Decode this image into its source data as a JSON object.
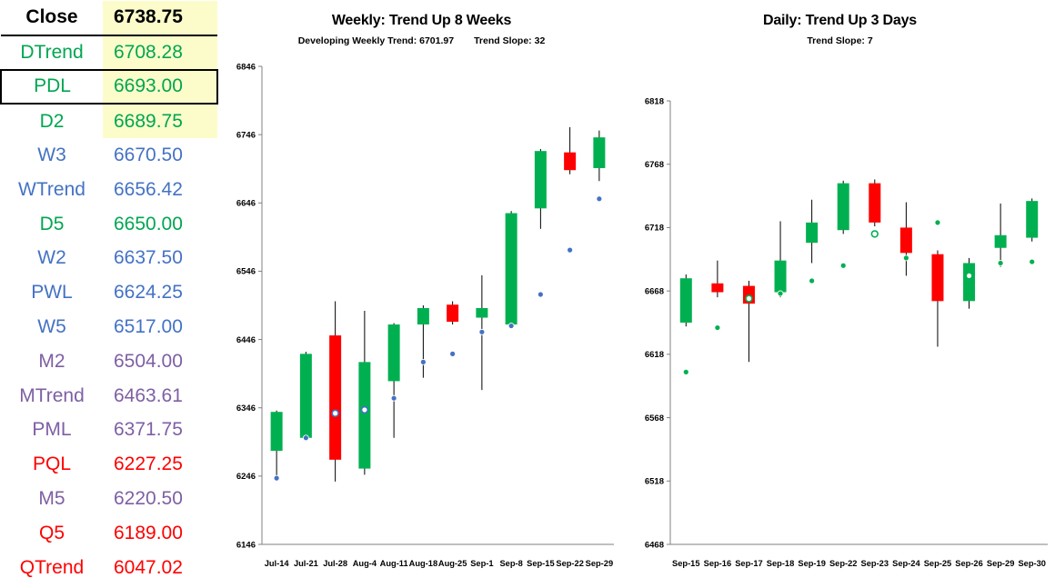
{
  "colors": {
    "black": "#000000",
    "green": "#00A651",
    "blue": "#4472C4",
    "purple": "#7E5FA4",
    "red": "#FF0000",
    "highlight": "#FCFCCB",
    "candle_up": "#00B050",
    "candle_down": "#FF0000",
    "axis": "#808080"
  },
  "levels": {
    "rows": [
      {
        "label": "Close",
        "value": "6738.75",
        "color": "black",
        "bold": true,
        "highlight": true,
        "border": "bottom"
      },
      {
        "label": "DTrend",
        "value": "6708.28",
        "color": "green",
        "highlight": true
      },
      {
        "label": "PDL",
        "value": "6693.00",
        "color": "green",
        "highlight": true,
        "border": "box"
      },
      {
        "label": "D2",
        "value": "6689.75",
        "color": "green",
        "highlight": true
      },
      {
        "label": "W3",
        "value": "6670.50",
        "color": "blue"
      },
      {
        "label": "WTrend",
        "value": "6656.42",
        "color": "blue"
      },
      {
        "label": "D5",
        "value": "6650.00",
        "color": "green"
      },
      {
        "label": "W2",
        "value": "6637.50",
        "color": "blue"
      },
      {
        "label": "PWL",
        "value": "6624.25",
        "color": "blue"
      },
      {
        "label": "W5",
        "value": "6517.00",
        "color": "blue"
      },
      {
        "label": "M2",
        "value": "6504.00",
        "color": "purple"
      },
      {
        "label": "MTrend",
        "value": "6463.61",
        "color": "purple"
      },
      {
        "label": "PML",
        "value": "6371.75",
        "color": "purple"
      },
      {
        "label": "PQL",
        "value": "6227.25",
        "color": "red"
      },
      {
        "label": "M5",
        "value": "6220.50",
        "color": "purple"
      },
      {
        "label": "Q5",
        "value": "6189.00",
        "color": "red"
      },
      {
        "label": "QTrend",
        "value": "6047.02",
        "color": "red"
      }
    ]
  },
  "chart_data": [
    {
      "type": "candlestick",
      "title": "Weekly: Trend Up 8 Weeks",
      "subtitle_left": "Developing Weekly Trend: 6701.97",
      "subtitle_right": "Trend Slope: 32",
      "ylim": [
        6146,
        6846
      ],
      "yticks": [
        6146,
        6246,
        6346,
        6446,
        6546,
        6646,
        6746,
        6846
      ],
      "dot_color": "#4472C4",
      "legend": "none",
      "grid": false,
      "categories": [
        "Jul-14",
        "Jul-21",
        "Jul-28",
        "Aug-4",
        "Aug-11",
        "Aug-18",
        "Aug-25",
        "Sep-1",
        "Sep-8",
        "Sep-15",
        "Sep-22",
        "Sep-29"
      ],
      "candles": [
        {
          "x": "Jul-14",
          "open": 6283,
          "high": 6342,
          "low": 6247,
          "close": 6340,
          "dot": 6243
        },
        {
          "x": "Jul-21",
          "open": 6302,
          "high": 6428,
          "low": 6298,
          "close": 6425,
          "dot": 6302
        },
        {
          "x": "Jul-28",
          "open": 6452,
          "high": 6502,
          "low": 6238,
          "close": 6270,
          "dot": 6338,
          "ring": true
        },
        {
          "x": "Aug-4",
          "open": 6257,
          "high": 6488,
          "low": 6248,
          "close": 6413,
          "dot": 6343,
          "ring": true
        },
        {
          "x": "Aug-11",
          "open": 6385,
          "high": 6470,
          "low": 6302,
          "close": 6468,
          "dot": 6360
        },
        {
          "x": "Aug-18",
          "open": 6468,
          "high": 6496,
          "low": 6390,
          "close": 6492,
          "dot": 6413
        },
        {
          "x": "Aug-25",
          "open": 6497,
          "high": 6502,
          "low": 6468,
          "close": 6472,
          "dot": 6425
        },
        {
          "x": "Sep-1",
          "open": 6478,
          "high": 6540,
          "low": 6372,
          "close": 6492,
          "dot": 6457
        },
        {
          "x": "Sep-8",
          "open": 6468,
          "high": 6634,
          "low": 6464,
          "close": 6631,
          "dot": 6466
        },
        {
          "x": "Sep-15",
          "open": 6638,
          "high": 6725,
          "low": 6608,
          "close": 6722,
          "dot": 6512
        },
        {
          "x": "Sep-22",
          "open": 6720,
          "high": 6757,
          "low": 6688,
          "close": 6694,
          "dot": 6577
        },
        {
          "x": "Sep-29",
          "open": 6697,
          "high": 6752,
          "low": 6678,
          "close": 6742,
          "dot": 6652
        }
      ]
    },
    {
      "type": "candlestick",
      "title": "Daily: Trend Up 3 Days",
      "subtitle": "Trend Slope: 7",
      "ylim": [
        6468,
        6818
      ],
      "yticks": [
        6468,
        6518,
        6568,
        6618,
        6668,
        6718,
        6768,
        6818
      ],
      "dot_color": "#00B050",
      "legend": "none",
      "grid": false,
      "categories": [
        "Sep-15",
        "Sep-16",
        "Sep-17",
        "Sep-18",
        "Sep-19",
        "Sep-22",
        "Sep-23",
        "Sep-24",
        "Sep-25",
        "Sep-26",
        "Sep-29",
        "Sep-30"
      ],
      "candles": [
        {
          "x": "Sep-15",
          "open": 6643,
          "high": 6681,
          "low": 6640,
          "close": 6678,
          "dot": 6604
        },
        {
          "x": "Sep-16",
          "open": 6674,
          "high": 6692,
          "low": 6663,
          "close": 6667,
          "dot": 6639
        },
        {
          "x": "Sep-17",
          "open": 6672,
          "high": 6676,
          "low": 6612,
          "close": 6658,
          "dot": 6662,
          "ring": true
        },
        {
          "x": "Sep-18",
          "open": 6667,
          "high": 6723,
          "low": 6663,
          "close": 6692,
          "dot": 6666
        },
        {
          "x": "Sep-19",
          "open": 6706,
          "high": 6740,
          "low": 6690,
          "close": 6722,
          "dot": 6676
        },
        {
          "x": "Sep-22",
          "open": 6716,
          "high": 6755,
          "low": 6713,
          "close": 6753,
          "dot": 6688
        },
        {
          "x": "Sep-23",
          "open": 6753,
          "high": 6756,
          "low": 6719,
          "close": 6722,
          "dot": 6713,
          "ring": true
        },
        {
          "x": "Sep-24",
          "open": 6718,
          "high": 6738,
          "low": 6680,
          "close": 6698,
          "dot": 6694
        },
        {
          "x": "Sep-25",
          "open": 6697,
          "high": 6700,
          "low": 6624,
          "close": 6660,
          "dot": 6722
        },
        {
          "x": "Sep-26",
          "open": 6660,
          "high": 6694,
          "low": 6654,
          "close": 6690,
          "dot": 6680,
          "ring": true
        },
        {
          "x": "Sep-29",
          "open": 6702,
          "high": 6737,
          "low": 6687,
          "close": 6712,
          "dot": 6690
        },
        {
          "x": "Sep-30",
          "open": 6710,
          "high": 6741,
          "low": 6707,
          "close": 6739,
          "dot": 6691
        }
      ]
    }
  ]
}
